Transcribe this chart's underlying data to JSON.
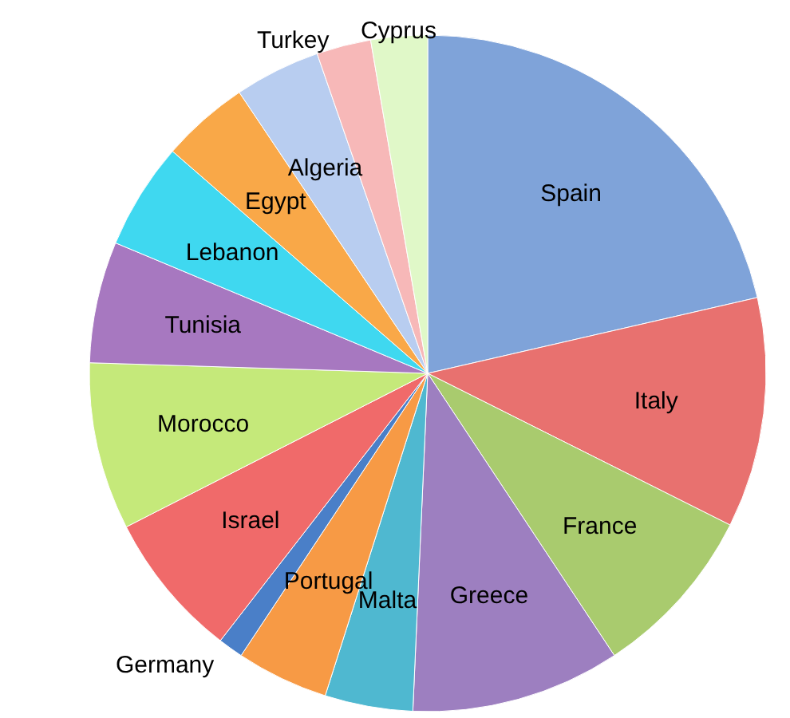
{
  "chart_data": {
    "type": "pie",
    "categories": [
      "Spain",
      "Italy",
      "France",
      "Greece",
      "Malta",
      "Portugal",
      "Germany",
      "Israel",
      "Morocco",
      "Tunisia",
      "Lebanon",
      "Egypt",
      "Algeria",
      "Turkey",
      "Cyprus"
    ],
    "values": [
      21.4,
      11,
      8.3,
      10,
      4.2,
      4.4,
      1.2,
      7,
      8,
      5.8,
      5.1,
      4.2,
      4.1,
      2.6,
      2.7
    ],
    "colors": [
      "#7fa3d9",
      "#e8716f",
      "#a9cb6e",
      "#9d7fc0",
      "#4fb8d0",
      "#f79a45",
      "#4a7fc8",
      "#f06a6a",
      "#c5e97a",
      "#a778c0",
      "#3fd8f0",
      "#f9a848",
      "#b8cdf0",
      "#f7b8b8",
      "#e0f8c8"
    ]
  }
}
